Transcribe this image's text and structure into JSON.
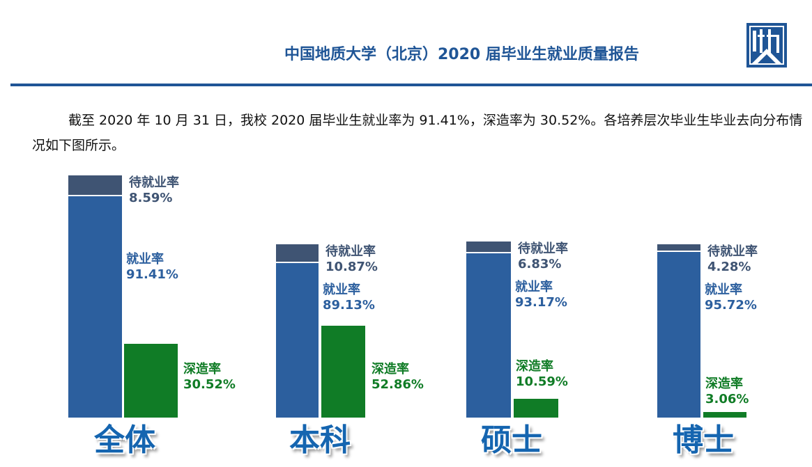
{
  "header": {
    "title": "中国地质大学（北京）2020 届毕业生就业质量报告"
  },
  "paragraph": "截至 2020 年 10 月 31 日，我校 2020 届毕业生就业率为 91.41%，深造率为 30.52%。各培养层次毕业生毕业去向分布情况如下图所示。",
  "chart_data": {
    "type": "bar",
    "categories": [
      "全体",
      "本科",
      "硕士",
      "博士"
    ],
    "series": [
      {
        "name": "就业率",
        "values": [
          91.41,
          89.13,
          93.17,
          95.72
        ],
        "color": "#2c5f9e"
      },
      {
        "name": "待就业率",
        "values": [
          8.59,
          10.87,
          6.83,
          4.28
        ],
        "color": "#3f5473",
        "stacked_on": "就业率"
      },
      {
        "name": "深造率",
        "values": [
          30.52,
          52.86,
          10.59,
          3.06
        ],
        "color": "#107c26"
      }
    ],
    "labels": [
      {
        "pending": {
          "name": "待就业率",
          "value": "8.59%"
        },
        "emp": {
          "name": "就业率",
          "value": "91.41%"
        },
        "deep": {
          "name": "深造率",
          "value": "30.52%"
        }
      },
      {
        "pending": {
          "name": "待就业率",
          "value": "10.87%"
        },
        "emp": {
          "name": "就业率",
          "value": "89.13%"
        },
        "deep": {
          "name": "深造率",
          "value": "52.86%"
        }
      },
      {
        "pending": {
          "name": "待就业率",
          "value": "6.83%"
        },
        "emp": {
          "name": "就业率",
          "value": "93.17%"
        },
        "deep": {
          "name": "深造率",
          "value": "10.59%"
        }
      },
      {
        "pending": {
          "name": "待就业率",
          "value": "4.28%"
        },
        "emp": {
          "name": "就业率",
          "value": "95.72%"
        },
        "deep": {
          "name": "深造率",
          "value": "3.06%"
        }
      }
    ],
    "label_colors": {
      "pending": "#3f5473",
      "emp": "#2c5f9e",
      "deep": "#107c26"
    },
    "category_label_color": "#1565b0"
  }
}
